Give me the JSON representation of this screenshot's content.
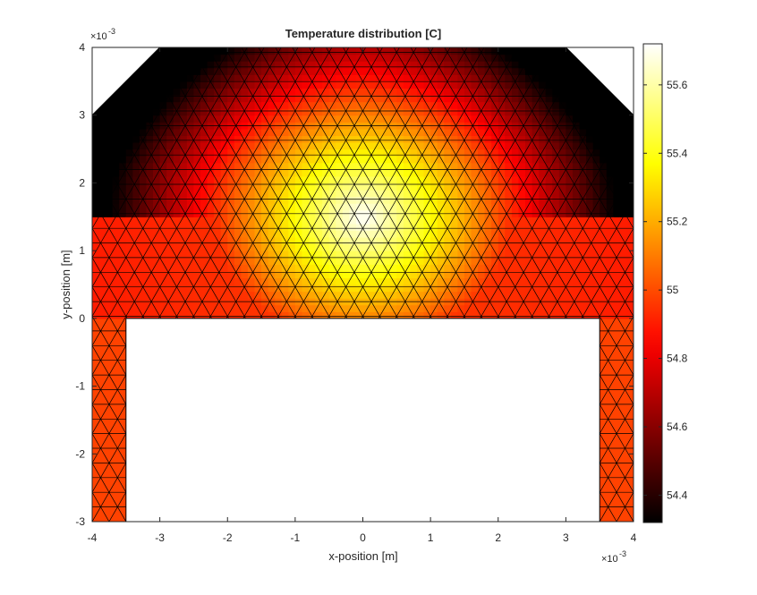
{
  "chart_data": {
    "type": "heatmap",
    "title": "Temperature distribution [C]",
    "xlabel": "x-position [m]",
    "ylabel": "y-position [m]",
    "x_exponent_label": "×10",
    "x_exponent": "-3",
    "y_exponent_label": "×10",
    "y_exponent": "-3",
    "xlim": [
      -4,
      4
    ],
    "ylim": [
      -3,
      4
    ],
    "xticks": [
      "-4",
      "-3",
      "-2",
      "-1",
      "0",
      "1",
      "2",
      "3",
      "4"
    ],
    "yticks": [
      "-3",
      "-2",
      "-1",
      "0",
      "1",
      "2",
      "3",
      "4"
    ],
    "colorbar": {
      "clim": [
        54.32,
        55.72
      ],
      "ticks": [
        "54.4",
        "54.6",
        "54.8",
        "55",
        "55.2",
        "55.4",
        "55.6"
      ],
      "tick_values": [
        54.4,
        54.6,
        54.8,
        55.0,
        55.2,
        55.4,
        55.6
      ],
      "colormap": "hot"
    },
    "geometry_outline": [
      [
        -4,
        0
      ],
      [
        -4,
        3
      ],
      [
        -3,
        4
      ],
      [
        3,
        4
      ],
      [
        4,
        3
      ],
      [
        4,
        -3
      ],
      [
        3.5,
        -3
      ],
      [
        3.5,
        0
      ],
      [
        -3.5,
        0
      ],
      [
        -3.5,
        -3
      ],
      [
        -4,
        -3
      ],
      [
        -4,
        0
      ]
    ],
    "temperature_field": {
      "hot_spot_center": [
        0,
        1.5
      ],
      "hot_spot_value": 55.72,
      "leg_value": 54.98,
      "coolest_corners": [
        [
          -4,
          3
        ],
        [
          4,
          3
        ]
      ],
      "coolest_value": 54.32
    },
    "mesh": "triangular finite-element mesh, black edges",
    "grid": false,
    "legend": "none"
  }
}
